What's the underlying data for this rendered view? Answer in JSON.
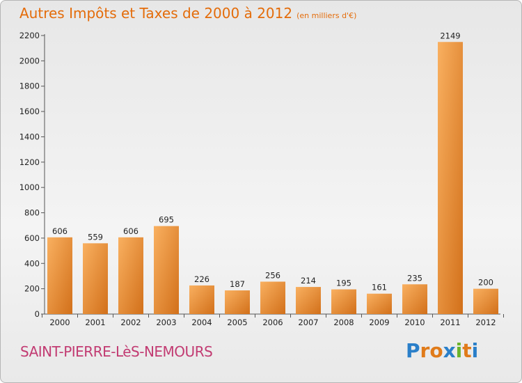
{
  "title": "Autres Impôts et Taxes de 2000 à 2012",
  "unit_note": "(en milliers d'€)",
  "commune": "SAINT-PIERRE-LèS-NEMOURS",
  "brand": {
    "letters": [
      "P",
      "r",
      "o",
      "x",
      "i",
      "t",
      "i"
    ],
    "colors": [
      "#2a7fc9",
      "#e07b1a",
      "#e07b1a",
      "#2a7fc9",
      "#6ab42d",
      "#e07b1a",
      "#2a7fc9"
    ]
  },
  "colors": {
    "title": "#e46c0a",
    "commune": "#c23b72",
    "bar_light": "#f8a955",
    "bar_dark": "#d7771f"
  },
  "chart_data": {
    "type": "bar",
    "categories": [
      "2000",
      "2001",
      "2002",
      "2003",
      "2004",
      "2005",
      "2006",
      "2007",
      "2008",
      "2009",
      "2010",
      "2011",
      "2012"
    ],
    "values": [
      606,
      559,
      606,
      695,
      226,
      187,
      256,
      214,
      195,
      161,
      235,
      2149,
      200
    ],
    "title": "Autres Impôts et Taxes de 2000 à 2012",
    "xlabel": "",
    "ylabel": "",
    "ylim": [
      0,
      2200
    ],
    "yticks": [
      0,
      200,
      400,
      600,
      800,
      1000,
      1200,
      1400,
      1600,
      1800,
      2000,
      2200
    ],
    "grid": false,
    "legend": "none"
  }
}
